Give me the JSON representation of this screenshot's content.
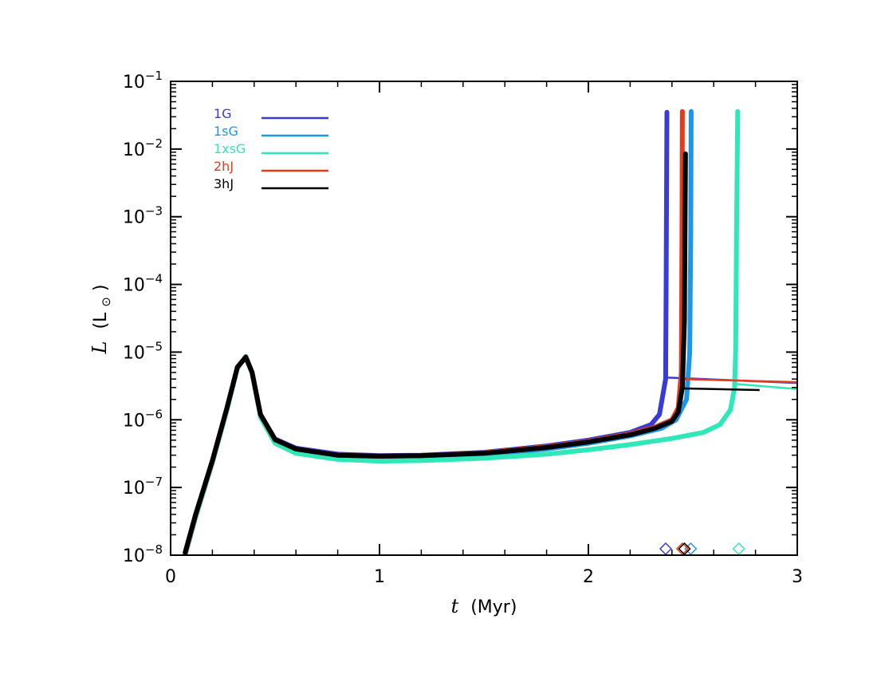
{
  "chart_data": {
    "type": "line",
    "xlabel": {
      "symbol": "t",
      "unit": "(Myr)"
    },
    "ylabel": {
      "symbol": "L",
      "unit_open": "(L",
      "unit_sun": "⊙",
      "unit_close": ")"
    },
    "xlim": [
      0,
      3
    ],
    "ylim": [
      1e-08,
      0.1
    ],
    "y_scale": "log",
    "x_ticks": [
      {
        "value": 0,
        "label": "0"
      },
      {
        "value": 1,
        "label": "1"
      },
      {
        "value": 2,
        "label": "2"
      },
      {
        "value": 3,
        "label": "3"
      }
    ],
    "y_ticks": [
      {
        "value": 1e-08,
        "base": "10",
        "exp": "−8"
      },
      {
        "value": 1e-07,
        "base": "10",
        "exp": "−7"
      },
      {
        "value": 1e-06,
        "base": "10",
        "exp": "−6"
      },
      {
        "value": 1e-05,
        "base": "10",
        "exp": "−5"
      },
      {
        "value": 0.0001,
        "base": "10",
        "exp": "−4"
      },
      {
        "value": 0.001,
        "base": "10",
        "exp": "−3"
      },
      {
        "value": 0.01,
        "base": "10",
        "exp": "−2"
      },
      {
        "value": 0.1,
        "base": "10",
        "exp": "−1"
      }
    ],
    "grid": false,
    "legend_position": "top-left",
    "series": [
      {
        "name": "1G",
        "color": "#3a3ad6",
        "points": [
          [
            0.07,
            1.1e-08
          ],
          [
            0.12,
            4e-08
          ],
          [
            0.2,
            2.5e-07
          ],
          [
            0.27,
            1.5e-06
          ],
          [
            0.32,
            6e-06
          ],
          [
            0.36,
            8.5e-06
          ],
          [
            0.39,
            5e-06
          ],
          [
            0.43,
            1.2e-06
          ],
          [
            0.5,
            5.2e-07
          ],
          [
            0.6,
            3.8e-07
          ],
          [
            0.8,
            3.1e-07
          ],
          [
            1.0,
            2.95e-07
          ],
          [
            1.2,
            3e-07
          ],
          [
            1.5,
            3.3e-07
          ],
          [
            1.8,
            4.1e-07
          ],
          [
            2.0,
            5e-07
          ],
          [
            2.2,
            6.5e-07
          ],
          [
            2.3,
            8.5e-07
          ],
          [
            2.34,
            1.2e-06
          ],
          [
            2.37,
            4e-06
          ],
          [
            2.372,
            8e-05
          ],
          [
            2.376,
            0.035
          ]
        ],
        "tail": [
          [
            2.38,
            4.2e-06
          ],
          [
            3.0,
            3.5e-06
          ]
        ],
        "end_t": 2.37
      },
      {
        "name": "1sG",
        "color": "#1e96e6",
        "points": [
          [
            0.07,
            1.05e-08
          ],
          [
            0.12,
            3.8e-08
          ],
          [
            0.2,
            2.4e-07
          ],
          [
            0.27,
            1.45e-06
          ],
          [
            0.32,
            5.9e-06
          ],
          [
            0.36,
            8.6e-06
          ],
          [
            0.39,
            5e-06
          ],
          [
            0.43,
            1.15e-06
          ],
          [
            0.5,
            4.9e-07
          ],
          [
            0.6,
            3.5e-07
          ],
          [
            0.8,
            2.85e-07
          ],
          [
            1.0,
            2.7e-07
          ],
          [
            1.2,
            2.75e-07
          ],
          [
            1.5,
            3e-07
          ],
          [
            1.8,
            3.7e-07
          ],
          [
            2.0,
            4.5e-07
          ],
          [
            2.2,
            5.8e-07
          ],
          [
            2.35,
            7.5e-07
          ],
          [
            2.42,
            1e-06
          ],
          [
            2.47,
            2e-06
          ],
          [
            2.485,
            1e-05
          ],
          [
            2.49,
            0.0006
          ],
          [
            2.492,
            0.036
          ]
        ],
        "tail": [],
        "end_t": 2.49
      },
      {
        "name": "1xsG",
        "color": "#2ee8b8",
        "points": [
          [
            0.07,
            1e-08
          ],
          [
            0.12,
            3.6e-08
          ],
          [
            0.2,
            2.3e-07
          ],
          [
            0.27,
            1.4e-06
          ],
          [
            0.32,
            5.8e-06
          ],
          [
            0.36,
            8.7e-06
          ],
          [
            0.39,
            4.9e-06
          ],
          [
            0.43,
            1.1e-06
          ],
          [
            0.5,
            4.5e-07
          ],
          [
            0.6,
            3.2e-07
          ],
          [
            0.8,
            2.6e-07
          ],
          [
            1.0,
            2.45e-07
          ],
          [
            1.2,
            2.5e-07
          ],
          [
            1.5,
            2.7e-07
          ],
          [
            1.8,
            3.1e-07
          ],
          [
            2.0,
            3.6e-07
          ],
          [
            2.2,
            4.3e-07
          ],
          [
            2.4,
            5.3e-07
          ],
          [
            2.55,
            6.5e-07
          ],
          [
            2.63,
            8.5e-07
          ],
          [
            2.68,
            1.4e-06
          ],
          [
            2.7,
            3e-06
          ],
          [
            2.705,
            1e-05
          ],
          [
            2.71,
            0.001
          ],
          [
            2.715,
            0.036
          ]
        ],
        "tail": [
          [
            2.7,
            3.4e-06
          ],
          [
            3.0,
            2.85e-06
          ]
        ],
        "end_t": 2.72
      },
      {
        "name": "2hJ",
        "color": "#e83a1a",
        "points": [
          [
            0.07,
            1.05e-08
          ],
          [
            0.12,
            3.9e-08
          ],
          [
            0.2,
            2.45e-07
          ],
          [
            0.27,
            1.5e-06
          ],
          [
            0.32,
            6e-06
          ],
          [
            0.36,
            8.5e-06
          ],
          [
            0.39,
            5e-06
          ],
          [
            0.43,
            1.2e-06
          ],
          [
            0.5,
            5.1e-07
          ],
          [
            0.6,
            3.7e-07
          ],
          [
            0.8,
            3e-07
          ],
          [
            1.0,
            2.9e-07
          ],
          [
            1.2,
            2.95e-07
          ],
          [
            1.5,
            3.25e-07
          ],
          [
            1.8,
            4e-07
          ],
          [
            2.0,
            4.8e-07
          ],
          [
            2.2,
            6.2e-07
          ],
          [
            2.32,
            7.8e-07
          ],
          [
            2.4,
            1e-06
          ],
          [
            2.43,
            1.5e-06
          ],
          [
            2.445,
            5e-06
          ],
          [
            2.448,
            0.0005
          ],
          [
            2.45,
            0.036
          ]
        ],
        "tail": [
          [
            2.45,
            4e-06
          ],
          [
            3.0,
            3.6e-06
          ]
        ],
        "end_t": 2.45
      },
      {
        "name": "3hJ",
        "color": "#000000",
        "points": [
          [
            0.07,
            1.1e-08
          ],
          [
            0.12,
            4e-08
          ],
          [
            0.2,
            2.5e-07
          ],
          [
            0.27,
            1.5e-06
          ],
          [
            0.32,
            6e-06
          ],
          [
            0.36,
            8.4e-06
          ],
          [
            0.39,
            5e-06
          ],
          [
            0.43,
            1.2e-06
          ],
          [
            0.5,
            5.1e-07
          ],
          [
            0.6,
            3.7e-07
          ],
          [
            0.8,
            3e-07
          ],
          [
            1.0,
            2.9e-07
          ],
          [
            1.2,
            2.95e-07
          ],
          [
            1.5,
            3.2e-07
          ],
          [
            1.8,
            3.9e-07
          ],
          [
            2.0,
            4.7e-07
          ],
          [
            2.2,
            6e-07
          ],
          [
            2.32,
            7.5e-07
          ],
          [
            2.4,
            9.5e-07
          ],
          [
            2.43,
            1.3e-06
          ],
          [
            2.45,
            3e-06
          ],
          [
            2.46,
            3e-05
          ],
          [
            2.465,
            0.0085
          ]
        ],
        "tail": [
          [
            2.46,
            2.9e-06
          ],
          [
            2.82,
            2.75e-06
          ]
        ],
        "end_t": 2.46
      }
    ]
  }
}
